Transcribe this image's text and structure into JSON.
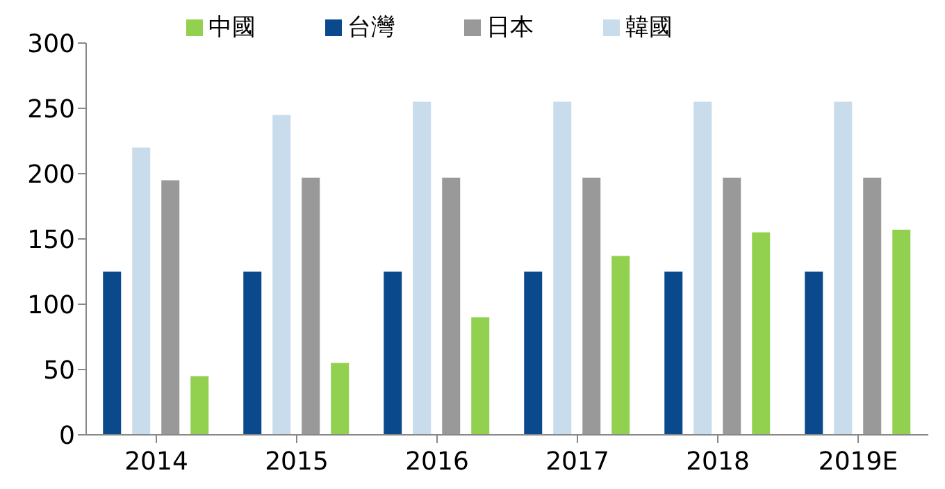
{
  "chart_data": {
    "type": "bar",
    "categories": [
      "2014",
      "2015",
      "2016",
      "2017",
      "2018",
      "2019E"
    ],
    "series": [
      {
        "name": "台灣",
        "color": "#0a4a8c",
        "values": [
          125,
          125,
          125,
          125,
          125,
          125
        ]
      },
      {
        "name": "韓國",
        "color": "#c8dcec",
        "values": [
          220,
          245,
          255,
          255,
          255,
          255
        ]
      },
      {
        "name": "日本",
        "color": "#999999",
        "values": [
          195,
          197,
          197,
          197,
          197,
          197
        ]
      },
      {
        "name": "中國",
        "color": "#92d050",
        "values": [
          45,
          55,
          90,
          137,
          155,
          157
        ]
      }
    ],
    "ylim": [
      0,
      300
    ],
    "yticks": [
      0,
      50,
      100,
      150,
      200,
      250,
      300
    ],
    "grid": false,
    "legend": "top"
  }
}
